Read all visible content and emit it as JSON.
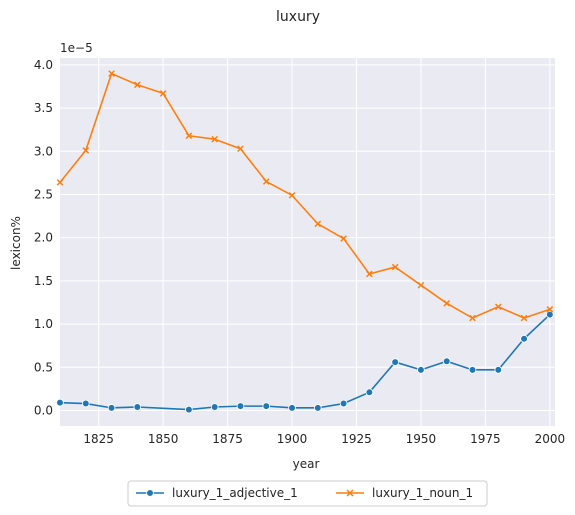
{
  "chart_data": {
    "type": "line",
    "title": "luxury",
    "xlabel": "year",
    "ylabel": "lexicon%",
    "y_offset_label": "1e−5",
    "xlim": [
      1810,
      2002
    ],
    "ylim": [
      -0.18,
      4.08
    ],
    "x_ticks": [
      1825,
      1850,
      1875,
      1900,
      1925,
      1950,
      1975,
      2000
    ],
    "y_ticks": [
      0.0,
      0.5,
      1.0,
      1.5,
      2.0,
      2.5,
      3.0,
      3.5,
      4.0
    ],
    "x_tick_labels": [
      "1825",
      "1850",
      "1875",
      "1900",
      "1925",
      "1950",
      "1975",
      "2000"
    ],
    "y_tick_labels": [
      "0.0",
      "0.5",
      "1.0",
      "1.5",
      "2.0",
      "2.5",
      "3.0",
      "3.5",
      "4.0"
    ],
    "grid": true,
    "legend_placement": "bottom-center",
    "series": [
      {
        "name": "luxury_1_adjective_1",
        "color": "#1f77b4",
        "marker": "circle",
        "x": [
          1810,
          1820,
          1830,
          1840,
          1860,
          1870,
          1880,
          1890,
          1900,
          1910,
          1920,
          1930,
          1940,
          1950,
          1960,
          1970,
          1980,
          1990,
          2000
        ],
        "y": [
          0.09,
          0.08,
          0.03,
          0.04,
          0.01,
          0.04,
          0.05,
          0.05,
          0.03,
          0.03,
          0.08,
          0.21,
          0.56,
          0.47,
          0.57,
          0.47,
          0.47,
          0.83,
          1.11
        ]
      },
      {
        "name": "luxury_1_noun_1",
        "color": "#ff7f0e",
        "marker": "x",
        "x": [
          1810,
          1820,
          1830,
          1840,
          1850,
          1860,
          1870,
          1880,
          1890,
          1900,
          1910,
          1920,
          1930,
          1940,
          1950,
          1960,
          1970,
          1980,
          1990,
          2000
        ],
        "y": [
          2.64,
          3.01,
          3.9,
          3.77,
          3.67,
          3.18,
          3.14,
          3.03,
          2.65,
          2.49,
          2.16,
          1.99,
          1.58,
          1.66,
          1.45,
          1.24,
          1.07,
          1.2,
          1.07,
          1.17
        ]
      }
    ]
  }
}
